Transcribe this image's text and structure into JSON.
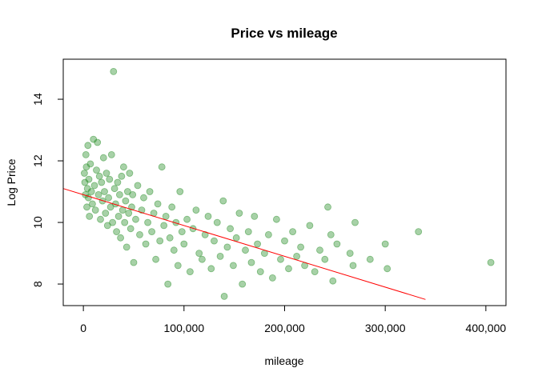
{
  "chart_data": {
    "type": "scatter",
    "title": "Price vs mileage",
    "xlabel": "mileage",
    "ylabel": "Log Price",
    "xlim": [
      -20000,
      420000
    ],
    "ylim": [
      7.3,
      15.3
    ],
    "xticks": [
      0,
      100000,
      200000,
      300000,
      400000
    ],
    "xtick_labels": [
      "0",
      "100,000",
      "200,000",
      "300,000",
      "400,000"
    ],
    "yticks": [
      8,
      10,
      12,
      14
    ],
    "ytick_labels": [
      "8",
      "10",
      "12",
      "14"
    ],
    "grid": false,
    "legend": "none",
    "point_color": "#228B22",
    "line_color": "#ff0000",
    "fit_line": {
      "intercept": 10.9,
      "slope": -1e-05,
      "x_range": [
        -20000,
        340000
      ]
    },
    "series": [
      {
        "points": [
          [
            1000,
            11.6
          ],
          [
            1500,
            11.3
          ],
          [
            2000,
            10.9
          ],
          [
            2500,
            12.2
          ],
          [
            3000,
            11.8
          ],
          [
            3500,
            10.5
          ],
          [
            4000,
            11.1
          ],
          [
            4500,
            12.5
          ],
          [
            5000,
            10.8
          ],
          [
            5500,
            11.4
          ],
          [
            6000,
            10.2
          ],
          [
            7000,
            11.9
          ],
          [
            8000,
            11.0
          ],
          [
            9000,
            10.6
          ],
          [
            10000,
            12.7
          ],
          [
            11000,
            11.2
          ],
          [
            12000,
            10.4
          ],
          [
            13000,
            11.7
          ],
          [
            14000,
            12.6
          ],
          [
            15000,
            10.9
          ],
          [
            16000,
            11.5
          ],
          [
            17000,
            10.1
          ],
          [
            18000,
            11.3
          ],
          [
            19000,
            10.7
          ],
          [
            20000,
            12.1
          ],
          [
            21000,
            11.0
          ],
          [
            22000,
            10.3
          ],
          [
            23000,
            11.6
          ],
          [
            24000,
            9.9
          ],
          [
            25000,
            10.8
          ],
          [
            26000,
            11.4
          ],
          [
            27000,
            10.5
          ],
          [
            28000,
            12.2
          ],
          [
            29000,
            10.0
          ],
          [
            30000,
            14.9
          ],
          [
            31000,
            11.1
          ],
          [
            32000,
            10.6
          ],
          [
            33000,
            9.7
          ],
          [
            34000,
            11.3
          ],
          [
            35000,
            10.2
          ],
          [
            36000,
            10.9
          ],
          [
            37000,
            9.5
          ],
          [
            38000,
            11.5
          ],
          [
            39000,
            10.4
          ],
          [
            40000,
            11.8
          ],
          [
            41000,
            10.0
          ],
          [
            42000,
            10.7
          ],
          [
            43000,
            9.2
          ],
          [
            44000,
            11.0
          ],
          [
            45000,
            10.3
          ],
          [
            46000,
            11.6
          ],
          [
            47000,
            9.8
          ],
          [
            48000,
            10.5
          ],
          [
            49000,
            10.9
          ],
          [
            50000,
            8.7
          ],
          [
            52000,
            10.1
          ],
          [
            54000,
            11.2
          ],
          [
            56000,
            9.6
          ],
          [
            58000,
            10.4
          ],
          [
            60000,
            10.8
          ],
          [
            62000,
            9.3
          ],
          [
            64000,
            10.0
          ],
          [
            66000,
            11.0
          ],
          [
            68000,
            9.7
          ],
          [
            70000,
            10.3
          ],
          [
            72000,
            8.8
          ],
          [
            74000,
            10.6
          ],
          [
            76000,
            9.4
          ],
          [
            78000,
            11.8
          ],
          [
            80000,
            9.9
          ],
          [
            82000,
            10.2
          ],
          [
            84000,
            8.0
          ],
          [
            86000,
            9.5
          ],
          [
            88000,
            10.5
          ],
          [
            90000,
            9.1
          ],
          [
            92000,
            10.0
          ],
          [
            94000,
            8.6
          ],
          [
            96000,
            11.0
          ],
          [
            98000,
            9.7
          ],
          [
            100000,
            9.3
          ],
          [
            103000,
            10.1
          ],
          [
            106000,
            8.4
          ],
          [
            109000,
            9.8
          ],
          [
            112000,
            10.4
          ],
          [
            115000,
            9.0
          ],
          [
            118000,
            8.8
          ],
          [
            121000,
            9.6
          ],
          [
            124000,
            10.2
          ],
          [
            127000,
            8.5
          ],
          [
            130000,
            9.4
          ],
          [
            133000,
            10.0
          ],
          [
            136000,
            8.9
          ],
          [
            139000,
            10.7
          ],
          [
            140000,
            7.6
          ],
          [
            143000,
            9.2
          ],
          [
            146000,
            9.8
          ],
          [
            149000,
            8.6
          ],
          [
            152000,
            9.5
          ],
          [
            155000,
            10.3
          ],
          [
            158000,
            8.0
          ],
          [
            161000,
            9.1
          ],
          [
            164000,
            9.7
          ],
          [
            167000,
            8.7
          ],
          [
            170000,
            10.2
          ],
          [
            173000,
            9.3
          ],
          [
            176000,
            8.4
          ],
          [
            180000,
            9.0
          ],
          [
            184000,
            9.6
          ],
          [
            188000,
            8.2
          ],
          [
            192000,
            10.1
          ],
          [
            196000,
            8.8
          ],
          [
            200000,
            9.4
          ],
          [
            204000,
            8.5
          ],
          [
            208000,
            9.7
          ],
          [
            212000,
            8.9
          ],
          [
            216000,
            9.2
          ],
          [
            220000,
            8.6
          ],
          [
            225000,
            9.9
          ],
          [
            230000,
            8.4
          ],
          [
            235000,
            9.1
          ],
          [
            240000,
            8.8
          ],
          [
            243000,
            10.5
          ],
          [
            246000,
            9.6
          ],
          [
            248000,
            8.1
          ],
          [
            252000,
            9.3
          ],
          [
            265000,
            9.0
          ],
          [
            268000,
            8.6
          ],
          [
            270000,
            10.0
          ],
          [
            285000,
            8.8
          ],
          [
            300000,
            9.3
          ],
          [
            302000,
            8.5
          ],
          [
            333000,
            9.7
          ],
          [
            405000,
            8.7
          ]
        ]
      }
    ]
  }
}
